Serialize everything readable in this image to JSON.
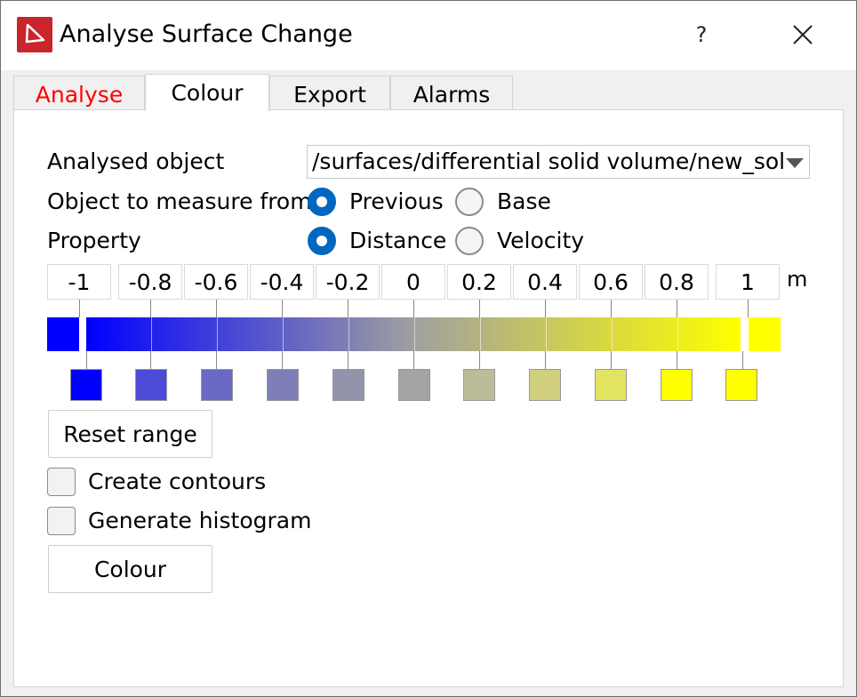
{
  "window": {
    "title": "Analyse Surface Change",
    "help_label": "?",
    "app_icon": "app-logo-icon",
    "close_icon": "close-icon"
  },
  "tabs": [
    {
      "label": "Analyse",
      "color": "#ff0000"
    },
    {
      "label": "Colour",
      "active": true
    },
    {
      "label": "Export"
    },
    {
      "label": "Alarms"
    }
  ],
  "form": {
    "analysed_object_label": "Analysed object",
    "analysed_object_value": "/surfaces/differential solid volume/new_solid",
    "measure_from_label": "Object to measure from",
    "measure_from_options": [
      {
        "label": "Previous",
        "selected": true
      },
      {
        "label": "Base",
        "selected": false
      }
    ],
    "property_label": "Property",
    "property_options": [
      {
        "label": "Distance",
        "selected": true
      },
      {
        "label": "Velocity",
        "selected": false
      }
    ]
  },
  "colour_map": {
    "ticks": [
      "-1",
      "-0.8",
      "-0.6",
      "-0.4",
      "-0.2",
      "0",
      "0.2",
      "0.4",
      "0.6",
      "0.8",
      "1"
    ],
    "unit": "m",
    "below_range_color": "#0000ff",
    "above_range_color": "#ffff00",
    "swatch_colors": [
      "#0000ff",
      "#4b4bd7",
      "#6a6ac6",
      "#7e7eb8",
      "#9393ab",
      "#a4a4a4",
      "#bcbc99",
      "#d0d07f",
      "#e3e362",
      "#ffff00",
      "#ffff00"
    ]
  },
  "buttons": {
    "reset_range": "Reset range",
    "colour": "Colour"
  },
  "checkboxes": {
    "create_contours": {
      "label": "Create contours",
      "checked": false
    },
    "generate_histogram": {
      "label": "Generate histogram",
      "checked": false
    }
  }
}
